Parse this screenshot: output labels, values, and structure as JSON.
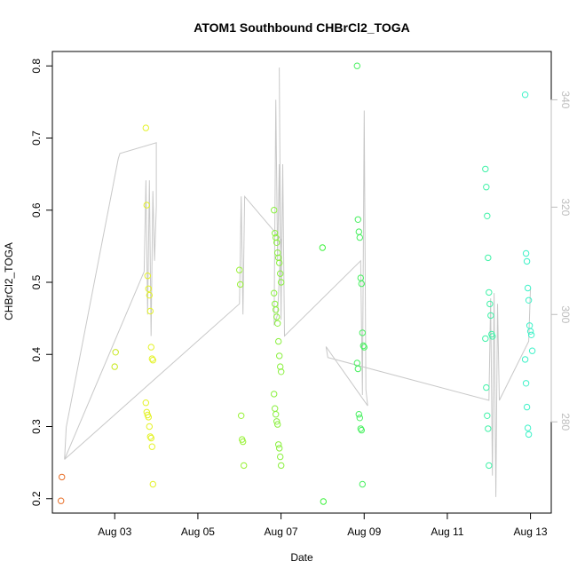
{
  "chart_data": {
    "type": "scatter",
    "title": "ATOM1 Southbound CHBrCl2_TOGA",
    "xlabel": "Date",
    "ylabel": "CHBrCl2_TOGA",
    "xlim": [
      "2016-08-01T12:00",
      "2016-08-13T12:00"
    ],
    "ylim": [
      0.18,
      0.82
    ],
    "y2lim": [
      263,
      349
    ],
    "x_ticks": [
      {
        "value": "2016-08-03T00:00",
        "label": "Aug 03"
      },
      {
        "value": "2016-08-05T00:00",
        "label": "Aug 05"
      },
      {
        "value": "2016-08-07T00:00",
        "label": "Aug 07"
      },
      {
        "value": "2016-08-09T00:00",
        "label": "Aug 09"
      },
      {
        "value": "2016-08-11T00:00",
        "label": "Aug 11"
      },
      {
        "value": "2016-08-13T00:00",
        "label": "Aug 13"
      }
    ],
    "y_ticks": [
      {
        "value": 0.2,
        "label": "0.2"
      },
      {
        "value": 0.3,
        "label": "0.3"
      },
      {
        "value": 0.4,
        "label": "0.4"
      },
      {
        "value": 0.5,
        "label": "0.5"
      },
      {
        "value": 0.6,
        "label": "0.6"
      },
      {
        "value": 0.7,
        "label": "0.7"
      },
      {
        "value": 0.8,
        "label": "0.8"
      }
    ],
    "y2_ticks": [
      {
        "value": 280,
        "label": "280"
      },
      {
        "value": 300,
        "label": "300"
      },
      {
        "value": 320,
        "label": "320"
      },
      {
        "value": 340,
        "label": "340"
      }
    ],
    "grid": false,
    "legend": "none",
    "marker": "open-circle",
    "line_color": "#c8c8c8",
    "point_groups": [
      {
        "color": "#e8702a",
        "x": "2016-08-01T19:00",
        "y": [
          0.197,
          0.23
        ]
      },
      {
        "color": "#c8e81c",
        "x": "2016-08-03T02:00",
        "y": [
          0.383,
          0.403
        ]
      },
      {
        "color": "#e4f228",
        "x": "2016-08-03T20:00",
        "y": [
          0.714,
          0.607,
          0.509,
          0.491,
          0.482,
          0.46,
          0.41,
          0.394,
          0.392,
          0.333,
          0.32,
          0.316,
          0.313,
          0.3,
          0.286,
          0.284,
          0.272,
          0.22
        ]
      },
      {
        "color": "#98f236",
        "x": "2016-08-06T02:00",
        "y": [
          0.517,
          0.497,
          0.315,
          0.282,
          0.279,
          0.246
        ]
      },
      {
        "color": "#8af03e",
        "x": "2016-08-06T22:00",
        "y": [
          0.6,
          0.568,
          0.562,
          0.555,
          0.541,
          0.534,
          0.527,
          0.512,
          0.5,
          0.485,
          0.47,
          0.462,
          0.452,
          0.443,
          0.418,
          0.398,
          0.383,
          0.376,
          0.345,
          0.325,
          0.317,
          0.307,
          0.303,
          0.275,
          0.27,
          0.258,
          0.246
        ]
      },
      {
        "color": "#3cf23c",
        "x": "2016-08-08T02:00",
        "y": [
          0.548,
          0.196
        ]
      },
      {
        "color": "#48f060",
        "x": "2016-08-08T22:00",
        "y": [
          0.8,
          0.587,
          0.57,
          0.562,
          0.506,
          0.498,
          0.43,
          0.412,
          0.41,
          0.388,
          0.38,
          0.317,
          0.312,
          0.297,
          0.295,
          0.22
        ]
      },
      {
        "color": "#40f2a8",
        "x": "2016-08-12T00:00",
        "y": [
          0.657,
          0.632,
          0.592,
          0.534,
          0.486,
          0.47,
          0.454,
          0.428,
          0.425,
          0.422,
          0.354,
          0.315,
          0.297,
          0.246
        ]
      },
      {
        "color": "#3ef2c8",
        "x": "2016-08-12T23:00",
        "y": [
          0.76,
          0.54,
          0.529,
          0.492,
          0.475,
          0.44,
          0.432,
          0.427,
          0.405,
          0.393,
          0.36,
          0.327,
          0.298,
          0.289
        ]
      }
    ],
    "secondary_line": {
      "axis": "right",
      "points": [
        [
          "2016-08-01T19:00",
          273
        ],
        [
          "2016-08-01T20:00",
          279
        ],
        [
          "2016-08-03T02:00",
          329
        ],
        [
          "2016-08-03T03:00",
          330
        ],
        [
          "2016-08-04T00:00",
          332
        ],
        [
          "2016-08-04T00:00",
          320
        ],
        [
          "2016-08-03T23:00",
          310
        ],
        [
          "2016-08-03T22:00",
          323
        ],
        [
          "2016-08-03T21:00",
          296
        ],
        [
          "2016-08-03T20:00",
          325
        ],
        [
          "2016-08-03T19:00",
          300
        ],
        [
          "2016-08-03T18:00",
          325
        ],
        [
          "2016-08-03T17:00",
          308
        ],
        [
          "2016-08-01T19:00",
          273
        ],
        [
          "2016-08-06T00:00",
          302
        ],
        [
          "2016-08-06T01:00",
          322
        ],
        [
          "2016-08-06T02:00",
          300
        ],
        [
          "2016-08-06T03:00",
          322
        ],
        [
          "2016-08-07T00:00",
          314
        ],
        [
          "2016-08-06T22:00",
          300
        ],
        [
          "2016-08-06T20:00",
          298
        ],
        [
          "2016-08-06T21:00",
          340
        ],
        [
          "2016-08-06T22:00",
          310
        ],
        [
          "2016-08-06T23:00",
          328
        ],
        [
          "2016-08-07T00:00",
          300
        ],
        [
          "2016-08-06T23:00",
          346
        ],
        [
          "2016-08-07T00:00",
          299
        ],
        [
          "2016-08-07T01:00",
          328
        ],
        [
          "2016-08-07T02:00",
          296
        ],
        [
          "2016-08-08T22:00",
          310
        ],
        [
          "2016-08-08T23:00",
          285
        ],
        [
          "2016-08-09T00:00",
          338
        ],
        [
          "2016-08-09T01:00",
          286
        ],
        [
          "2016-08-09T02:00",
          283
        ],
        [
          "2016-08-08T02:00",
          294
        ],
        [
          "2016-08-08T03:00",
          292
        ],
        [
          "2016-08-12T00:00",
          284
        ],
        [
          "2016-08-12T01:00",
          303
        ],
        [
          "2016-08-12T02:00",
          270
        ],
        [
          "2016-08-12T03:00",
          304
        ],
        [
          "2016-08-12T04:00",
          266
        ],
        [
          "2016-08-12T05:00",
          302
        ],
        [
          "2016-08-12T06:00",
          284
        ],
        [
          "2016-08-12T23:00",
          295
        ],
        [
          "2016-08-13T00:00",
          305
        ]
      ]
    }
  }
}
